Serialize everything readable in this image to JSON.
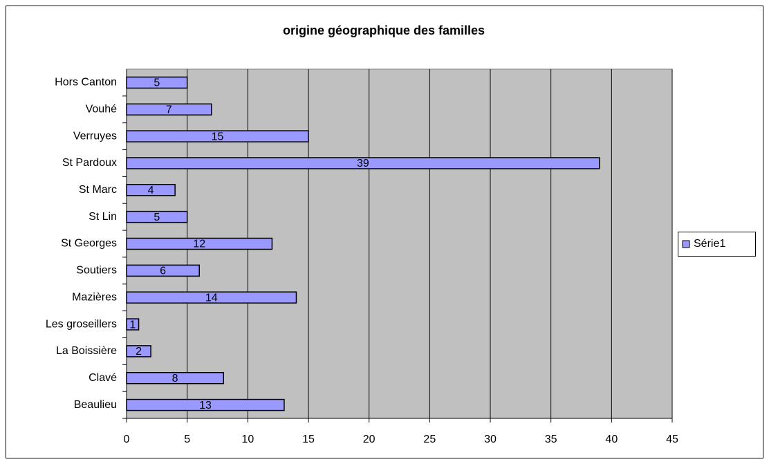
{
  "chart_data": {
    "type": "bar",
    "orientation": "horizontal",
    "title": "origine géographique des familles",
    "categories": [
      "Beaulieu",
      "Clavé",
      "La Boissière",
      "Les groseillers",
      "Mazières",
      "Soutiers",
      "St Georges",
      "St Lin",
      "St Marc",
      "St Pardoux",
      "Verruyes",
      "Vouhé",
      "Hors Canton"
    ],
    "series": [
      {
        "name": "Série1",
        "color": "#9999ff",
        "values": [
          13,
          8,
          2,
          1,
          14,
          6,
          12,
          5,
          4,
          39,
          15,
          7,
          5
        ]
      }
    ],
    "xlim": [
      0,
      45
    ],
    "xticks": [
      0,
      5,
      10,
      15,
      20,
      25,
      30,
      35,
      40,
      45
    ],
    "grid": true,
    "legend": "right",
    "data_labels": true
  }
}
